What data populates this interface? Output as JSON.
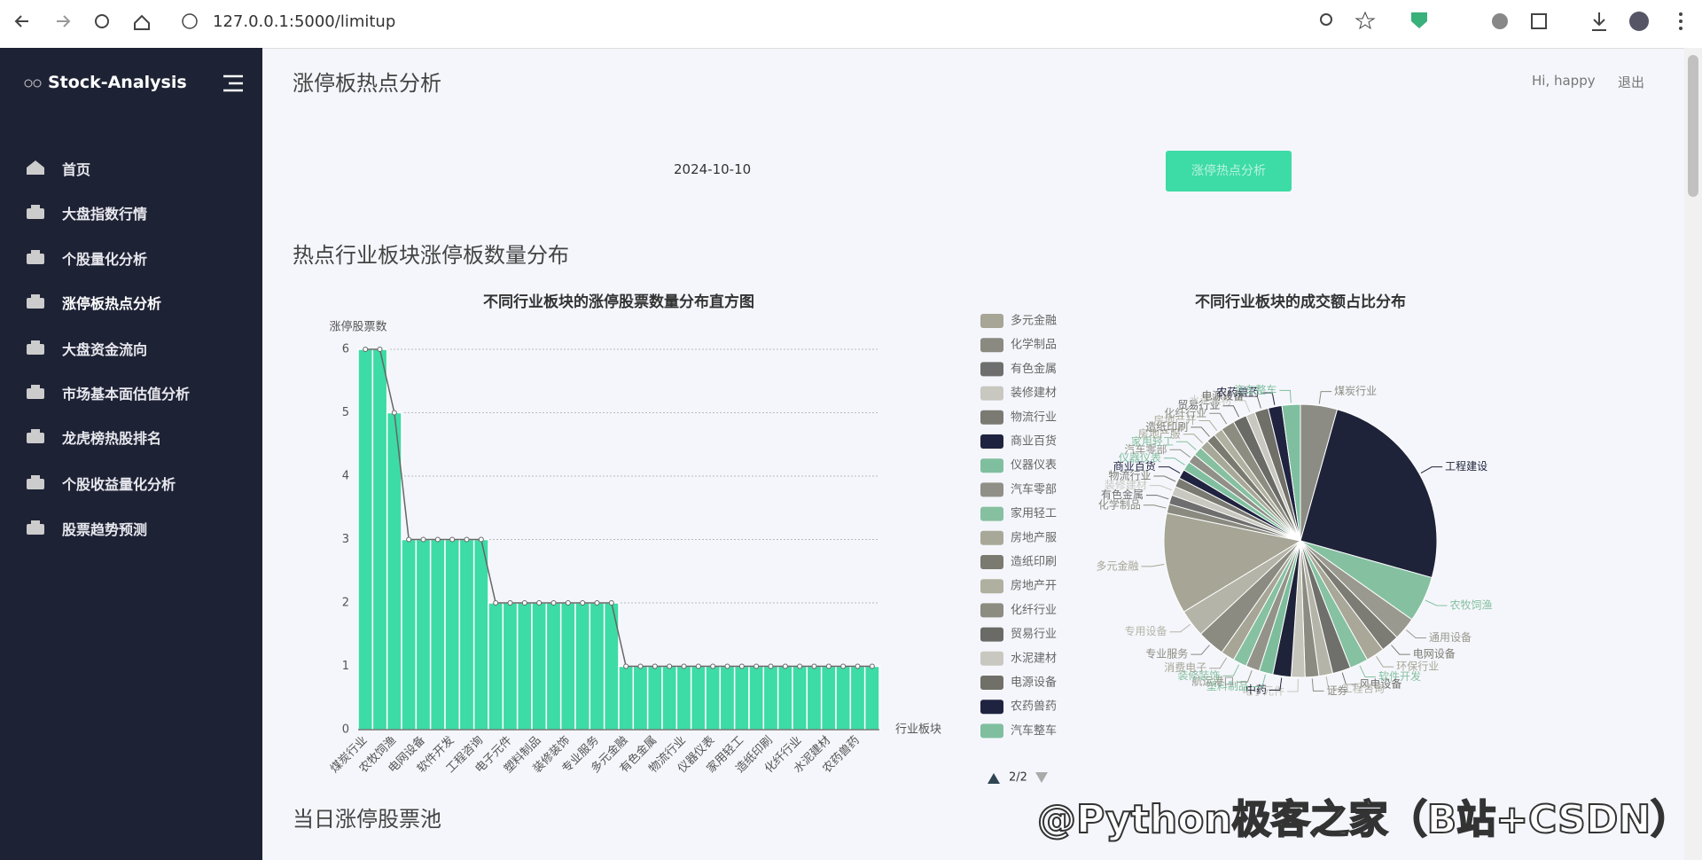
{
  "browser": {
    "url": "127.0.0.1:5000/limitup"
  },
  "sidebar": {
    "brand": "Stock-Analysis",
    "menu": [
      "首页",
      "大盘指数行情",
      "个股量化分析",
      "涨停板热点分析",
      "大盘资金流向",
      "市场基本面估值分析",
      "龙虎榜热股排名",
      "个股收益量化分析",
      "股票趋势预测"
    ]
  },
  "header": {
    "title": "涨停板热点分析",
    "greeting": "Hi, happy",
    "logout": "退出"
  },
  "query": {
    "date": "2024-10-10",
    "button": "涨停热点分析"
  },
  "sections": [
    "热点行业板块涨停板数量分布",
    "当日涨停股票池"
  ],
  "chart_data": [
    {
      "type": "bar",
      "title": "不同行业板块的涨停股票数量分布直方图",
      "y_label": "涨停股票数",
      "x_label": "行业板块",
      "categories": [
        "煤炭行业",
        null,
        "农牧饲渔",
        null,
        "电网设备",
        null,
        "软件开发",
        null,
        "工程咨询",
        null,
        "电子元件",
        null,
        "塑料制品",
        null,
        "装修装饰",
        null,
        "专业服务",
        null,
        "多元金融",
        null,
        "有色金属",
        null,
        "物流行业",
        null,
        "仪器仪表",
        null,
        "家用轻工",
        null,
        "造纸印刷",
        null,
        "化纤行业",
        null,
        "水泥建材",
        null,
        "农药兽药",
        null
      ],
      "values": [
        6,
        6,
        5,
        3,
        3,
        3,
        3,
        3,
        3,
        2,
        2,
        2,
        2,
        2,
        2,
        2,
        2,
        2,
        1,
        1,
        1,
        1,
        1,
        1,
        1,
        1,
        1,
        1,
        1,
        1,
        1,
        1,
        1,
        1,
        1,
        1
      ],
      "color": "#3ddba6",
      "line_color": "#666666",
      "ylim": [
        0,
        6
      ],
      "yticks": [
        0,
        1,
        2,
        3,
        4,
        5,
        6
      ],
      "grid": true
    },
    {
      "type": "pie",
      "title": "不同行业板块的成交额占比分布",
      "legend": "left",
      "legend_page": "2/2",
      "categories": [
        "煤炭行业",
        "工程建设",
        "农牧饲渔",
        "通用设备",
        "电网设备",
        "环保行业",
        "软件开发",
        "风电设备",
        "工程咨询",
        "证券",
        "电子元件",
        "中药",
        "塑料制品",
        "航运港口",
        "装修装饰",
        "消费电子",
        "专业服务",
        "专用设备",
        "多元金融",
        "化学制品",
        "有色金属",
        "装修建材",
        "物流行业",
        "商业百货",
        "仪器仪表",
        "汽车零部",
        "家用轻工",
        "房地产服",
        "造纸印刷",
        "房地产开",
        "化纤行业",
        "贸易行业",
        "水泥建材",
        "电源设备",
        "农药兽药",
        "汽车整车"
      ],
      "values": [
        4,
        23,
        5,
        2.5,
        2,
        2,
        2,
        2,
        1.5,
        1.5,
        1.5,
        2,
        1.5,
        1.5,
        1.5,
        1.5,
        3,
        3,
        11,
        1,
        1,
        1,
        1,
        1,
        1,
        1,
        1,
        1,
        1,
        1,
        1.5,
        1.5,
        1,
        1.5,
        1.5,
        2
      ],
      "colors": [
        "#8d8c84",
        "#1e2339",
        "#85c1a1",
        "#9a998f",
        "#7d7c74",
        "#a8a798",
        "#86c1a2",
        "#6f6f6b",
        "#b5b4a8",
        "#8c8b82",
        "#c6c5bb",
        "#1e2339",
        "#7dbd9c",
        "#94938a",
        "#86c1a2",
        "#a6a596",
        "#8c8b82",
        "#b5b4a8",
        "#a6a596",
        "#8a8a80",
        "#6e6e6e",
        "#c8c8c0",
        "#7a7a72",
        "#1f2340",
        "#7fbf9f",
        "#909088",
        "#86c0a0",
        "#a8a898",
        "#7a7a70",
        "#b0b0a0",
        "#8c8c80",
        "#6a6a66",
        "#c8c8c0",
        "#707068",
        "#1f2340",
        "#7fbf9f"
      ]
    }
  ],
  "watermark": "@Python极客之家（B站+CSDN）"
}
